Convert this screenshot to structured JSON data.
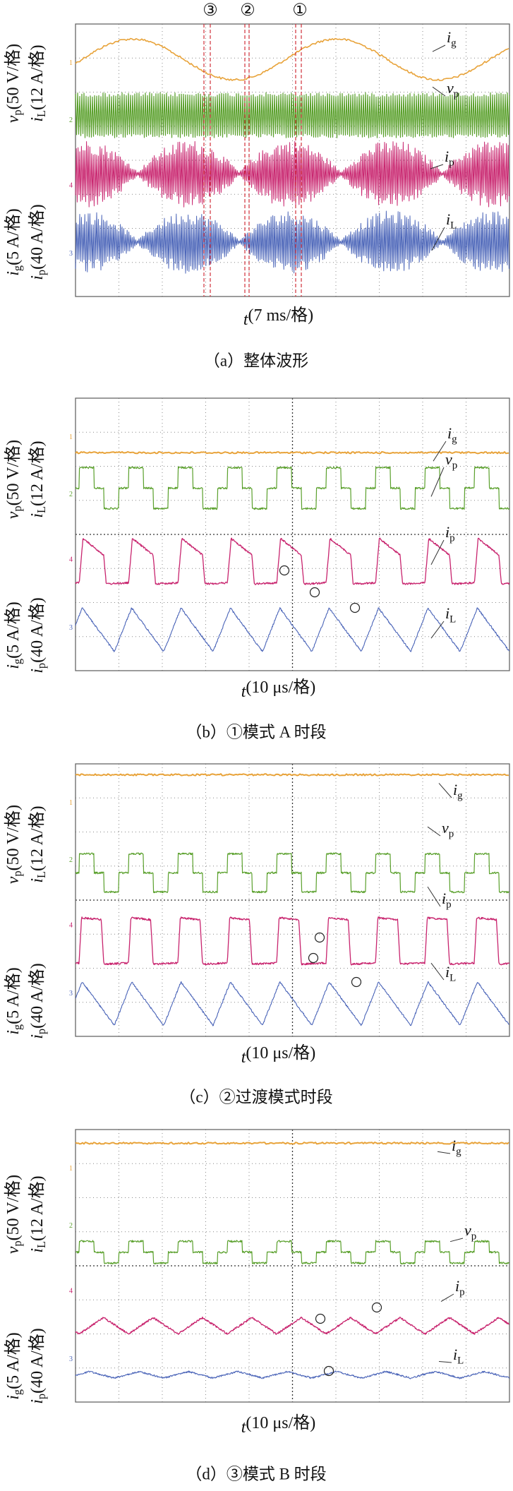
{
  "panels": [
    {
      "markers": [
        "③",
        "②",
        "①"
      ],
      "traces": [
        {
          "symbol": "i",
          "sub": "g"
        },
        {
          "symbol": "v",
          "sub": "p"
        },
        {
          "symbol": "i",
          "sub": "p"
        },
        {
          "symbol": "i",
          "sub": "L"
        }
      ],
      "y_labels": [
        {
          "symbol": "v",
          "sub": "p",
          "unit": "(50 V/格)"
        },
        {
          "symbol": "i",
          "sub": "L",
          "unit": "(12 A/格)"
        },
        {
          "symbol": "i",
          "sub": "g",
          "unit": "(5 A/格)"
        },
        {
          "symbol": "i",
          "sub": "p",
          "unit": "(40 A/格)"
        }
      ],
      "channels": [
        "1",
        "2",
        "4",
        "3"
      ],
      "x_label": {
        "symbol": "t",
        "unit": "(7 ms/格)"
      },
      "caption": "（a）整体波形"
    },
    {
      "traces": [
        {
          "symbol": "i",
          "sub": "g"
        },
        {
          "symbol": "v",
          "sub": "p"
        },
        {
          "symbol": "i",
          "sub": "p"
        },
        {
          "symbol": "i",
          "sub": "L"
        }
      ],
      "y_labels": [
        {
          "symbol": "v",
          "sub": "p",
          "unit": "(50 V/格)"
        },
        {
          "symbol": "i",
          "sub": "L",
          "unit": "(12 A/格)"
        },
        {
          "symbol": "i",
          "sub": "g",
          "unit": "(5 A/格)"
        },
        {
          "symbol": "i",
          "sub": "p",
          "unit": "(40 A/格)"
        }
      ],
      "channels": [
        "1",
        "2",
        "4",
        "3"
      ],
      "x_label": {
        "symbol": "t",
        "unit": "(10 μs/格)"
      },
      "caption": "（b）①模式 A 时段"
    },
    {
      "traces": [
        {
          "symbol": "i",
          "sub": "g"
        },
        {
          "symbol": "v",
          "sub": "p"
        },
        {
          "symbol": "i",
          "sub": "p"
        },
        {
          "symbol": "i",
          "sub": "L"
        }
      ],
      "y_labels": [
        {
          "symbol": "v",
          "sub": "p",
          "unit": "(50 V/格)"
        },
        {
          "symbol": "i",
          "sub": "L",
          "unit": "(12 A/格)"
        },
        {
          "symbol": "i",
          "sub": "g",
          "unit": "(5 A/格)"
        },
        {
          "symbol": "i",
          "sub": "p",
          "unit": "(40 A/格)"
        }
      ],
      "channels": [
        "1",
        "2",
        "4",
        "3"
      ],
      "x_label": {
        "symbol": "t",
        "unit": "(10 μs/格)"
      },
      "caption": "（c）②过渡模式时段"
    },
    {
      "traces": [
        {
          "symbol": "i",
          "sub": "g"
        },
        {
          "symbol": "v",
          "sub": "p"
        },
        {
          "symbol": "i",
          "sub": "p"
        },
        {
          "symbol": "i",
          "sub": "L"
        }
      ],
      "y_labels": [
        {
          "symbol": "v",
          "sub": "p",
          "unit": "(50 V/格)"
        },
        {
          "symbol": "i",
          "sub": "L",
          "unit": "(12 A/格)"
        },
        {
          "symbol": "i",
          "sub": "g",
          "unit": "(5 A/格)"
        },
        {
          "symbol": "i",
          "sub": "p",
          "unit": "(40 A/格)"
        }
      ],
      "channels": [
        "1",
        "2",
        "4",
        "3"
      ],
      "x_label": {
        "symbol": "t",
        "unit": "(10 μs/格)"
      },
      "caption": "（d）③模式 B 时段"
    }
  ]
}
